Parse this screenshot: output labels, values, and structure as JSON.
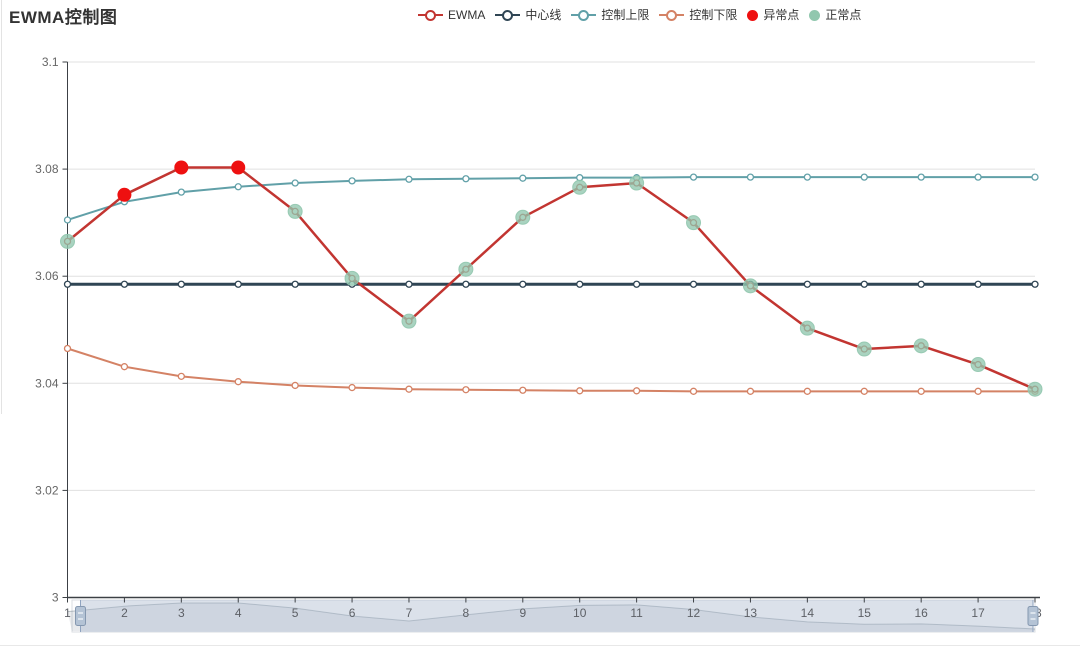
{
  "chart_data": {
    "type": "line",
    "title": "EWMA控制图",
    "x": [
      1,
      2,
      3,
      4,
      5,
      6,
      7,
      8,
      9,
      10,
      11,
      12,
      13,
      14,
      15,
      16,
      17,
      18
    ],
    "ylim": [
      3.0,
      3.1
    ],
    "yticks": [
      3.0,
      3.02,
      3.04,
      3.06,
      3.08,
      3.1
    ],
    "ytick_labels": [
      "3",
      "3.02",
      "3.04",
      "3.06",
      "3.08",
      "3.1"
    ],
    "grid": true,
    "legend_position": "top-center",
    "datazoom": {
      "type": "slider",
      "range": [
        1,
        18
      ]
    },
    "series": [
      {
        "name": "EWMA",
        "type": "line",
        "color": "#c23531",
        "marker": "hollow-circle",
        "values": [
          3.0665,
          3.0752,
          3.0803,
          3.0803,
          3.0721,
          3.0596,
          3.0516,
          3.0613,
          3.071,
          3.0766,
          3.0774,
          3.07,
          3.0582,
          3.0503,
          3.0464,
          3.047,
          3.0435,
          3.0389
        ]
      },
      {
        "name": "中心线",
        "type": "line",
        "color": "#2f4554",
        "marker": "hollow-circle",
        "values": [
          3.0585,
          3.0585,
          3.0585,
          3.0585,
          3.0585,
          3.0585,
          3.0585,
          3.0585,
          3.0585,
          3.0585,
          3.0585,
          3.0585,
          3.0585,
          3.0585,
          3.0585,
          3.0585,
          3.0585,
          3.0585
        ]
      },
      {
        "name": "控制上限",
        "type": "line",
        "color": "#61a0a8",
        "marker": "hollow-circle",
        "values": [
          3.0705,
          3.0739,
          3.0757,
          3.0767,
          3.0774,
          3.0778,
          3.0781,
          3.0782,
          3.0783,
          3.0784,
          3.0784,
          3.0785,
          3.0785,
          3.0785,
          3.0785,
          3.0785,
          3.0785,
          3.0785
        ]
      },
      {
        "name": "控制下限",
        "type": "line",
        "color": "#d48265",
        "marker": "hollow-circle",
        "values": [
          3.0465,
          3.0431,
          3.0413,
          3.0403,
          3.0396,
          3.0392,
          3.0389,
          3.0388,
          3.0387,
          3.0386,
          3.0386,
          3.0385,
          3.0385,
          3.0385,
          3.0385,
          3.0385,
          3.0385,
          3.0385
        ]
      },
      {
        "name": "异常点",
        "type": "scatter",
        "color": "#ee1010",
        "points": [
          [
            2,
            3.0752
          ],
          [
            3,
            3.0803
          ],
          [
            4,
            3.0803
          ]
        ]
      },
      {
        "name": "正常点",
        "type": "scatter",
        "color": "#91c7ae",
        "opacity": 0.78,
        "points": [
          [
            1,
            3.0665
          ],
          [
            5,
            3.0721
          ],
          [
            6,
            3.0596
          ],
          [
            7,
            3.0516
          ],
          [
            8,
            3.0613
          ],
          [
            9,
            3.071
          ],
          [
            10,
            3.0766
          ],
          [
            11,
            3.0774
          ],
          [
            12,
            3.07
          ],
          [
            13,
            3.0582
          ],
          [
            14,
            3.0503
          ],
          [
            15,
            3.0464
          ],
          [
            16,
            3.047
          ],
          [
            17,
            3.0435
          ],
          [
            18,
            3.0389
          ]
        ]
      }
    ]
  }
}
